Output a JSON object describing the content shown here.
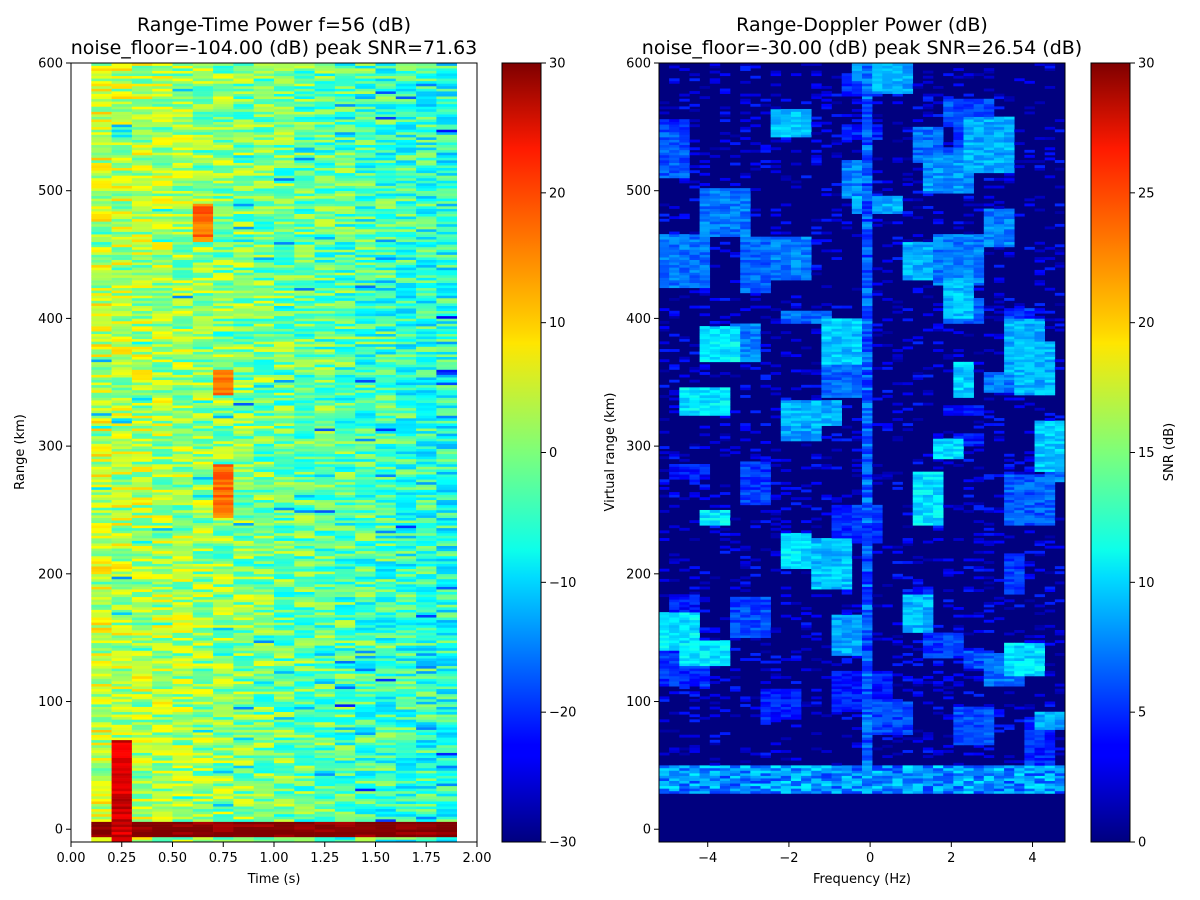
{
  "chart_data": [
    {
      "type": "heatmap",
      "title": "Range-Time Power f=56 (dB)",
      "subtitle": "noise_floor=-104.00 (dB) peak SNR=71.63",
      "xlabel": "Time (s)",
      "ylabel": "Range (km)",
      "xlim": [
        0.0,
        2.0
      ],
      "ylim": [
        -10,
        600
      ],
      "data_extent_x": [
        0.1,
        1.9
      ],
      "data_extent_y": [
        -10,
        600
      ],
      "x_ticks": [
        "0.00",
        "0.25",
        "0.50",
        "0.75",
        "1.00",
        "1.25",
        "1.50",
        "1.75",
        "2.00"
      ],
      "y_ticks": [
        "0",
        "100",
        "200",
        "300",
        "400",
        "500",
        "600"
      ],
      "colormap": "jet",
      "colorbar": {
        "range": [
          -30,
          30
        ],
        "ticks": [
          "−30",
          "−20",
          "−10",
          "0",
          "10",
          "20",
          "30"
        ],
        "label": ""
      },
      "grid": false,
      "features": [
        {
          "range_km": [
            -5,
            5
          ],
          "time_s": [
            0.1,
            1.9
          ],
          "value_db": 30
        },
        {
          "range_km": [
            -10,
            70
          ],
          "time_s": [
            0.2,
            0.3
          ],
          "value_db": 25
        },
        {
          "range_km": [
            245,
            285
          ],
          "time_s": [
            0.7,
            0.8
          ],
          "value_db": 16
        },
        {
          "range_km": [
            460,
            490
          ],
          "time_s": [
            0.6,
            0.7
          ],
          "value_db": 16
        },
        {
          "range_km": [
            340,
            360
          ],
          "time_s": [
            0.7,
            0.8
          ],
          "value_db": 15
        }
      ]
    },
    {
      "type": "heatmap",
      "title": "Range-Doppler Power (dB)",
      "subtitle": "noise_floor=-30.00 (dB) peak SNR=26.54 (dB)",
      "xlabel": "Frequency (Hz)",
      "ylabel": "Virtual range (km)",
      "xlim": [
        -5.2,
        4.8
      ],
      "ylim": [
        -10,
        600
      ],
      "x_ticks": [
        "−4",
        "−2",
        "0",
        "2",
        "4"
      ],
      "y_ticks": [
        "0",
        "100",
        "200",
        "300",
        "400",
        "500",
        "600"
      ],
      "colormap": "jet",
      "colorbar": {
        "range": [
          0,
          30
        ],
        "ticks": [
          "0",
          "5",
          "10",
          "15",
          "20",
          "25",
          "30"
        ],
        "label": "SNR (dB)"
      },
      "grid": false,
      "features": [
        {
          "range_km": [
            28,
            50
          ],
          "freq_hz": [
            -5.2,
            4.8
          ],
          "value_db": 10
        },
        {
          "range_km": [
            -10,
            28
          ],
          "freq_hz": [
            -5.2,
            4.8
          ],
          "value_db": 0
        },
        {
          "range_km": [
            50,
            600
          ],
          "freq_hz": [
            -0.1,
            0.1
          ],
          "value_db": 8
        }
      ]
    }
  ]
}
